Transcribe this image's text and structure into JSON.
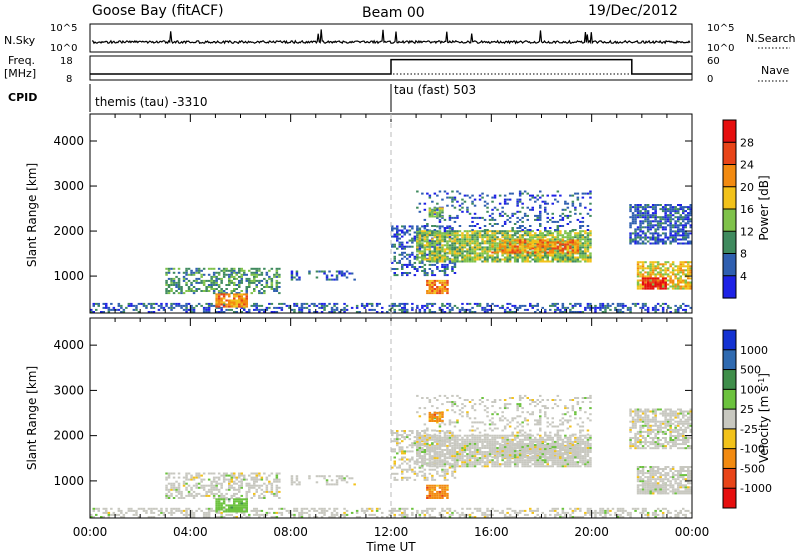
{
  "header": {
    "station": "Goose Bay (fitACF)",
    "beam": "Beam 00",
    "date": "19/Dec/2012"
  },
  "top_panels": {
    "nsky_label": "N.Sky",
    "nsky_tick_top": "10^5",
    "nsky_tick_bottom": "10^0",
    "nsearch_label": "N.Search",
    "nsearch_tick_top": "10^5",
    "nsearch_tick_bottom": "10^0",
    "freq_label_1": "Freq.",
    "freq_label_2": "[MHz]",
    "freq_tick_top": "18",
    "freq_tick_bottom": "8",
    "nave_label": "Nave",
    "nave_tick_top": "60",
    "nave_tick_bottom": "0",
    "cpid_label": "CPID",
    "cpid_mode_1": "themis (tau) -3310",
    "cpid_mode_2": "tau (fast) 503"
  },
  "axes": {
    "ylabel": "Slant Range [km]",
    "xlabel": "Time UT",
    "y_ticks": [
      "1000",
      "2000",
      "3000",
      "4000"
    ],
    "x_ticks": [
      "00:00",
      "04:00",
      "08:00",
      "12:00",
      "16:00",
      "20:00",
      "00:00"
    ]
  },
  "power_colorbar": {
    "label": "Power [dB]",
    "ticks": [
      "4",
      "8",
      "12",
      "16",
      "20",
      "24",
      "28"
    ],
    "colors": [
      "#1e22e6",
      "#2f5fb0",
      "#3f8a5e",
      "#7fc24a",
      "#f2c21a",
      "#f28a10",
      "#e84418",
      "#e60e0e"
    ]
  },
  "velocity_colorbar": {
    "label": "Velocity [m s^-1]",
    "ticks": [
      "1000",
      "500",
      "100",
      "25",
      "-25",
      "-100",
      "-500",
      "-1000"
    ],
    "colors": [
      "#1432d2",
      "#2f6ab0",
      "#3f8e4a",
      "#6cc23e",
      "#c8c8c0",
      "#f2c21a",
      "#f28a10",
      "#e84418",
      "#e60e0e"
    ]
  },
  "chart_data": {
    "type": "heatmap",
    "x_range_hours": [
      0,
      24
    ],
    "y_range_km": [
      180,
      4600
    ],
    "mode_change_ut": "12:00",
    "scatter_regions": [
      {
        "t0": 0.0,
        "t1": 24.0,
        "r0": 180,
        "r1": 400,
        "density": 0.45,
        "power_level": 1,
        "velocity_level": 4
      },
      {
        "t0": 3.0,
        "t1": 7.5,
        "r0": 600,
        "r1": 1150,
        "density": 0.55,
        "power_level": 2,
        "velocity_level": 4
      },
      {
        "t0": 5.0,
        "t1": 6.2,
        "r0": 300,
        "r1": 600,
        "density": 0.8,
        "power_level": 5,
        "velocity_level": 3
      },
      {
        "t0": 8.0,
        "t1": 10.5,
        "r0": 900,
        "r1": 1100,
        "density": 0.25,
        "power_level": 1,
        "velocity_level": 4
      },
      {
        "t0": 12.0,
        "t1": 14.5,
        "r0": 1000,
        "r1": 2100,
        "density": 0.4,
        "power_level": 1,
        "velocity_level": 4
      },
      {
        "t0": 13.0,
        "t1": 20.0,
        "r0": 1300,
        "r1": 2000,
        "density": 0.85,
        "power_level": 3,
        "velocity_level": 4
      },
      {
        "t0": 16.0,
        "t1": 19.5,
        "r0": 1500,
        "r1": 1800,
        "density": 0.7,
        "power_level": 5,
        "velocity_level": 4
      },
      {
        "t0": 13.0,
        "t1": 20.0,
        "r0": 2000,
        "r1": 2900,
        "density": 0.25,
        "power_level": 1,
        "velocity_level": 4
      },
      {
        "t0": 13.4,
        "t1": 14.2,
        "r0": 600,
        "r1": 900,
        "density": 0.85,
        "power_level": 5,
        "velocity_level": 6
      },
      {
        "t0": 21.5,
        "t1": 24.0,
        "r0": 1700,
        "r1": 2600,
        "density": 0.75,
        "power_level": 1,
        "velocity_level": 4
      },
      {
        "t0": 21.8,
        "t1": 24.0,
        "r0": 700,
        "r1": 1300,
        "density": 0.75,
        "power_level": 4,
        "velocity_level": 4
      },
      {
        "t0": 22.0,
        "t1": 23.0,
        "r0": 700,
        "r1": 950,
        "density": 0.8,
        "power_level": 7,
        "velocity_level": 4
      },
      {
        "t0": 13.5,
        "t1": 14.0,
        "r0": 2300,
        "r1": 2500,
        "density": 0.7,
        "power_level": 3,
        "velocity_level": 6
      }
    ],
    "frequency_mhz_segments": [
      {
        "t0": 0.0,
        "t1": 12.0,
        "value": 10.5
      },
      {
        "t0": 12.0,
        "t1": 21.6,
        "value": 16.5
      },
      {
        "t0": 21.6,
        "t1": 24.0,
        "value": 10.5
      }
    ]
  }
}
